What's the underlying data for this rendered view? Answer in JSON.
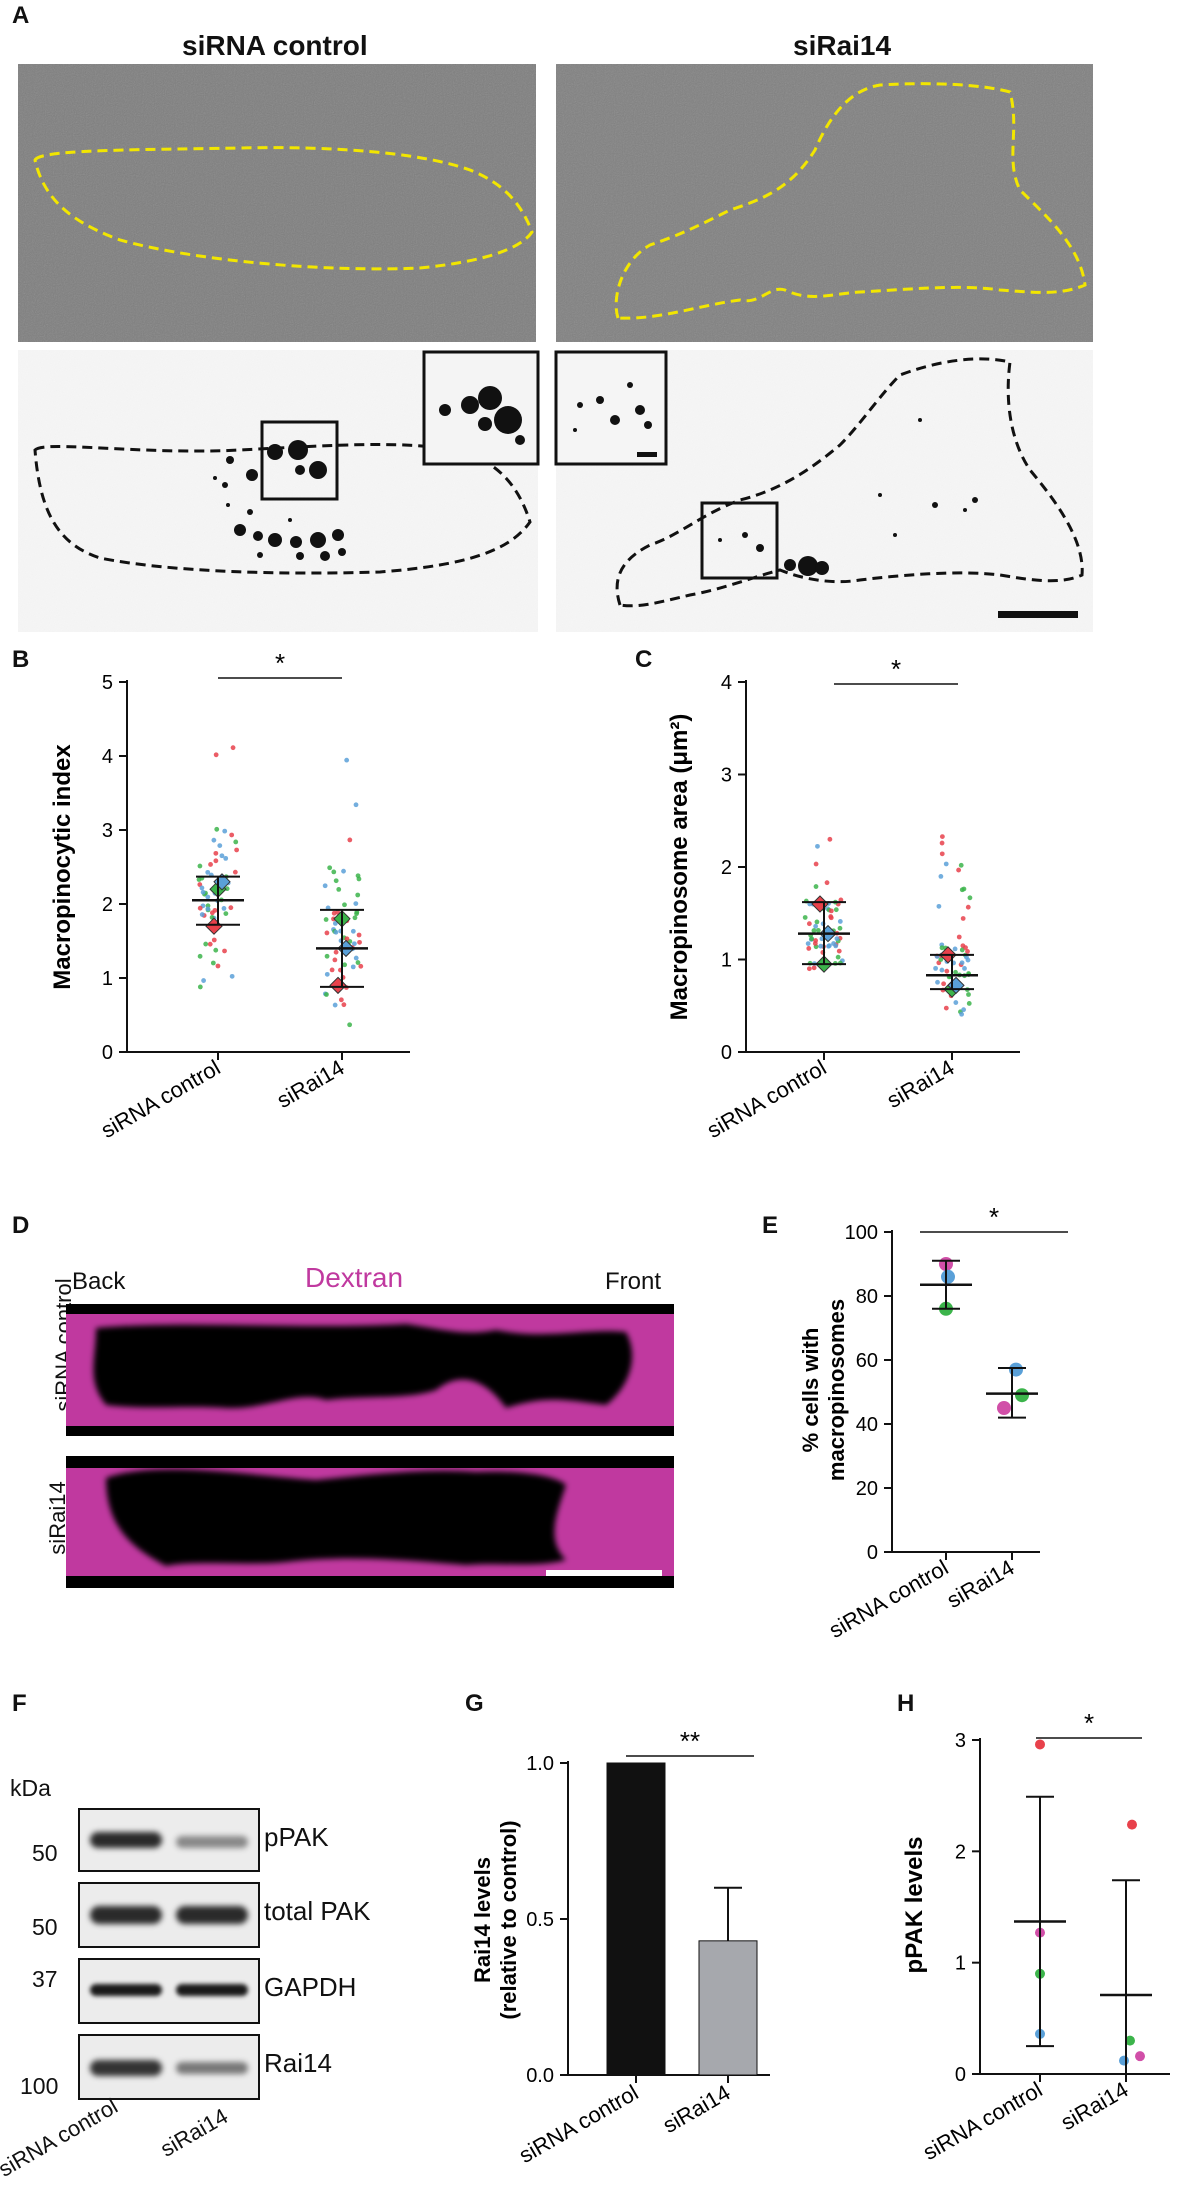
{
  "figure": {
    "panel_labels": [
      "A",
      "B",
      "C",
      "D",
      "E",
      "F",
      "G",
      "H"
    ],
    "panel_a": {
      "col_titles": [
        "siRNA control",
        "siRai14"
      ]
    },
    "panel_d": {
      "row_labels": [
        "siRNA control",
        "siRai14"
      ],
      "back_label": "Back",
      "front_label": "Front",
      "channel_label": "Dextran",
      "channel_color": "#c0399f"
    },
    "panel_f": {
      "kda_label": "kDa",
      "blots": [
        {
          "name": "pPAK",
          "mw": "50"
        },
        {
          "name": "total PAK",
          "mw": "50"
        },
        {
          "name": "GAPDH",
          "mw": "37"
        },
        {
          "name": "Rai14",
          "mw": "100"
        }
      ],
      "lanes": [
        "siRNA control",
        "siRai14"
      ]
    },
    "colors": {
      "outline_yellow": "#f2e600",
      "rep_red": "#e8414b",
      "rep_green": "#3cb44b",
      "rep_blue": "#5aa0d8",
      "rep_pink": "#d14fa8",
      "bar_black": "#111111",
      "bar_gray": "#a6a8ad"
    }
  },
  "chart_data": [
    {
      "id": "B",
      "type": "scatter",
      "ylabel": "Macropinocytic index",
      "categories": [
        "siRNA control",
        "siRai14"
      ],
      "ylim": [
        0,
        5
      ],
      "yticks": [
        0,
        1,
        2,
        3,
        4,
        5
      ],
      "mean": [
        2.05,
        1.4
      ],
      "error_low": [
        1.72,
        0.88
      ],
      "error_high": [
        2.37,
        1.92
      ],
      "replicate_means": [
        {
          "category": "siRNA control",
          "values": [
            {
              "color": "red",
              "value": 1.7
            },
            {
              "color": "green",
              "value": 2.2
            },
            {
              "color": "blue",
              "value": 2.3
            }
          ]
        },
        {
          "category": "siRai14",
          "values": [
            {
              "color": "red",
              "value": 0.9
            },
            {
              "color": "green",
              "value": 1.8
            },
            {
              "color": "blue",
              "value": 1.4
            }
          ]
        }
      ],
      "significance": "*"
    },
    {
      "id": "C",
      "type": "scatter",
      "ylabel": "Macropinosome area (μm²)",
      "categories": [
        "siRNA control",
        "siRai14"
      ],
      "ylim": [
        0,
        4
      ],
      "yticks": [
        0,
        1,
        2,
        3,
        4
      ],
      "mean": [
        1.28,
        0.83
      ],
      "error_low": [
        0.95,
        0.68
      ],
      "error_high": [
        1.62,
        1.05
      ],
      "replicate_means": [
        {
          "category": "siRNA control",
          "values": [
            {
              "color": "red",
              "value": 1.6
            },
            {
              "color": "green",
              "value": 0.95
            },
            {
              "color": "blue",
              "value": 1.28
            }
          ]
        },
        {
          "category": "siRai14",
          "values": [
            {
              "color": "red",
              "value": 1.05
            },
            {
              "color": "green",
              "value": 0.68
            },
            {
              "color": "blue",
              "value": 0.72
            }
          ]
        }
      ],
      "significance": "*"
    },
    {
      "id": "E",
      "type": "scatter",
      "ylabel": "% cells with macropinosomes",
      "categories": [
        "siRNA control",
        "siRai14"
      ],
      "ylim": [
        0,
        100
      ],
      "yticks": [
        0,
        20,
        40,
        60,
        80,
        100
      ],
      "mean": [
        83.5,
        49.5
      ],
      "error_low": [
        76,
        42
      ],
      "error_high": [
        91,
        57.5
      ],
      "points": [
        {
          "category": "siRNA control",
          "values": [
            {
              "color": "pink",
              "value": 90
            },
            {
              "color": "blue",
              "value": 86
            },
            {
              "color": "green",
              "value": 76
            }
          ]
        },
        {
          "category": "siRai14",
          "values": [
            {
              "color": "blue",
              "value": 57
            },
            {
              "color": "green",
              "value": 49
            },
            {
              "color": "pink",
              "value": 45
            }
          ]
        }
      ],
      "significance": "*"
    },
    {
      "id": "G",
      "type": "bar",
      "ylabel": "Rai14 levels (relative to control)",
      "categories": [
        "siRNA control",
        "siRai14"
      ],
      "values": [
        1.0,
        0.43
      ],
      "error_high": [
        1.0,
        0.6
      ],
      "ylim": [
        0,
        1.0
      ],
      "yticks": [
        "0.0",
        "0.5",
        "1.0"
      ],
      "significance": "**"
    },
    {
      "id": "H",
      "type": "scatter",
      "ylabel": "pPAK levels",
      "categories": [
        "siRNA control",
        "siRai14"
      ],
      "ylim": [
        0,
        3
      ],
      "yticks": [
        0,
        1,
        2,
        3
      ],
      "mean": [
        1.37,
        0.71
      ],
      "error_low": [
        0.25,
        0.0
      ],
      "error_high": [
        2.49,
        1.74
      ],
      "points": [
        {
          "category": "siRNA control",
          "values": [
            {
              "color": "red",
              "value": 2.96
            },
            {
              "color": "pink",
              "value": 1.27
            },
            {
              "color": "green",
              "value": 0.9
            },
            {
              "color": "blue",
              "value": 0.36
            }
          ]
        },
        {
          "category": "siRai14",
          "values": [
            {
              "color": "red",
              "value": 2.24
            },
            {
              "color": "green",
              "value": 0.3
            },
            {
              "color": "pink",
              "value": 0.16
            },
            {
              "color": "blue",
              "value": 0.12
            }
          ]
        }
      ],
      "significance": "*"
    }
  ]
}
